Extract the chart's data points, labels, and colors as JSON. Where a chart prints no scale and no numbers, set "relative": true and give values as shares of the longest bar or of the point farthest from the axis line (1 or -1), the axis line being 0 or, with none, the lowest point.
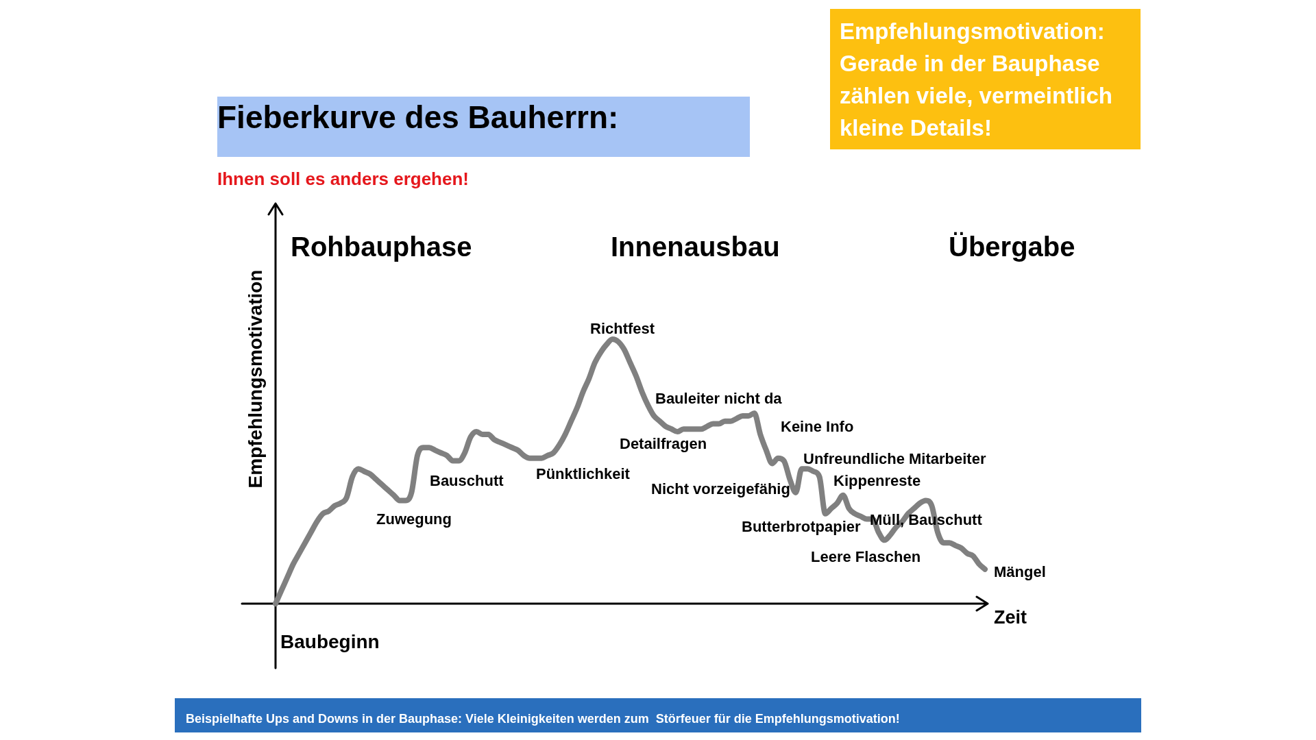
{
  "chart_data": {
    "type": "line",
    "title": "Fieberkurve des Bauherrn:",
    "subtitle": "Ihnen soll es anders ergehen!",
    "xlabel": "Zeit",
    "ylabel": "Empfehlungsmotivation",
    "relative": true,
    "categories": [
      null,
      null,
      null,
      null,
      null,
      null,
      null,
      null,
      null,
      null,
      null,
      null,
      null,
      null,
      null,
      null,
      null,
      null,
      null,
      null,
      null,
      null,
      null,
      null,
      null,
      null,
      null,
      null,
      null,
      null,
      null,
      null,
      null,
      null,
      null,
      null,
      null,
      null,
      null,
      null,
      null,
      null,
      null,
      null,
      null,
      null,
      null,
      null,
      null,
      null,
      null,
      null,
      null,
      null,
      null,
      null,
      null,
      null,
      null,
      null,
      null,
      null,
      null,
      null,
      null,
      null,
      null,
      null,
      null,
      null,
      null,
      null,
      null,
      null,
      null,
      null,
      null,
      null,
      null,
      null,
      null,
      null,
      null,
      null,
      null,
      null,
      null,
      null,
      null,
      null,
      null,
      null,
      null,
      null,
      null,
      null,
      null,
      null,
      null,
      null,
      null,
      null,
      null,
      null,
      null,
      null,
      null,
      null,
      null,
      null,
      null,
      null,
      null,
      null,
      null,
      null,
      null,
      null,
      null,
      null,
      null
    ],
    "values": [
      0,
      0.05,
      0.1,
      0.15,
      0.19,
      0.23,
      0.27,
      0.31,
      0.34,
      0.35,
      0.37,
      0.38,
      0.4,
      0.48,
      0.51,
      0.5,
      0.49,
      0.47,
      0.45,
      0.43,
      0.41,
      0.39,
      0.39,
      0.42,
      0.56,
      0.59,
      0.59,
      0.58,
      0.57,
      0.56,
      0.54,
      0.54,
      0.57,
      0.63,
      0.65,
      0.64,
      0.64,
      0.62,
      0.61,
      0.6,
      0.59,
      0.58,
      0.56,
      0.55,
      0.55,
      0.55,
      0.56,
      0.57,
      0.6,
      0.64,
      0.69,
      0.74,
      0.8,
      0.85,
      0.91,
      0.95,
      0.98,
      1,
      0.99,
      0.96,
      0.91,
      0.86,
      0.8,
      0.75,
      0.71,
      0.69,
      0.67,
      0.66,
      0.65,
      0.66,
      0.66,
      0.66,
      0.66,
      0.67,
      0.68,
      0.68,
      0.69,
      0.69,
      0.7,
      0.71,
      0.71,
      0.72,
      0.64,
      0.58,
      0.53,
      0.55,
      0.54,
      0.47,
      0.42,
      0.51,
      0.51,
      0.5,
      0.48,
      0.34,
      0.36,
      0.38,
      0.41,
      0.36,
      0.34,
      0.33,
      0.32,
      0.32,
      0.27,
      0.24,
      0.26,
      0.29,
      0.31,
      0.34,
      0.36,
      0.38,
      0.39,
      0.37,
      0.27,
      0.23,
      0.23,
      0.22,
      0.21,
      0.19,
      0.18,
      0.15,
      0.13
    ],
    "color": "#808080",
    "legend": false,
    "marker": "none",
    "line_style": "solid",
    "tick_labels": false,
    "annotations": [
      "Empfehlungsmotivation: Gerade in der Bauphase zählen viele, vermeintlich kleine Details!",
      "Rohbauphase",
      "Innenausbau",
      "Übergabe",
      "Richtfest",
      "Zuwegung",
      "Bauschutt",
      "Pünktlichkeit",
      "Detailfragen",
      "Bauleiter nicht da",
      "Keine Info",
      "Nicht vorzeigefähig",
      "Unfreundliche Mitarbeiter",
      "Kippenreste",
      "Butterbrotpapier",
      "Müll, Bauschutt",
      "Leere Flaschen",
      "Mängel",
      "Baubeginn",
      "Beispielhafte Ups and Downs in der Bauphase: Viele Kleinigkeiten werden zum  Störfeuer für die Empfehlungsmotivation!"
    ]
  }
}
